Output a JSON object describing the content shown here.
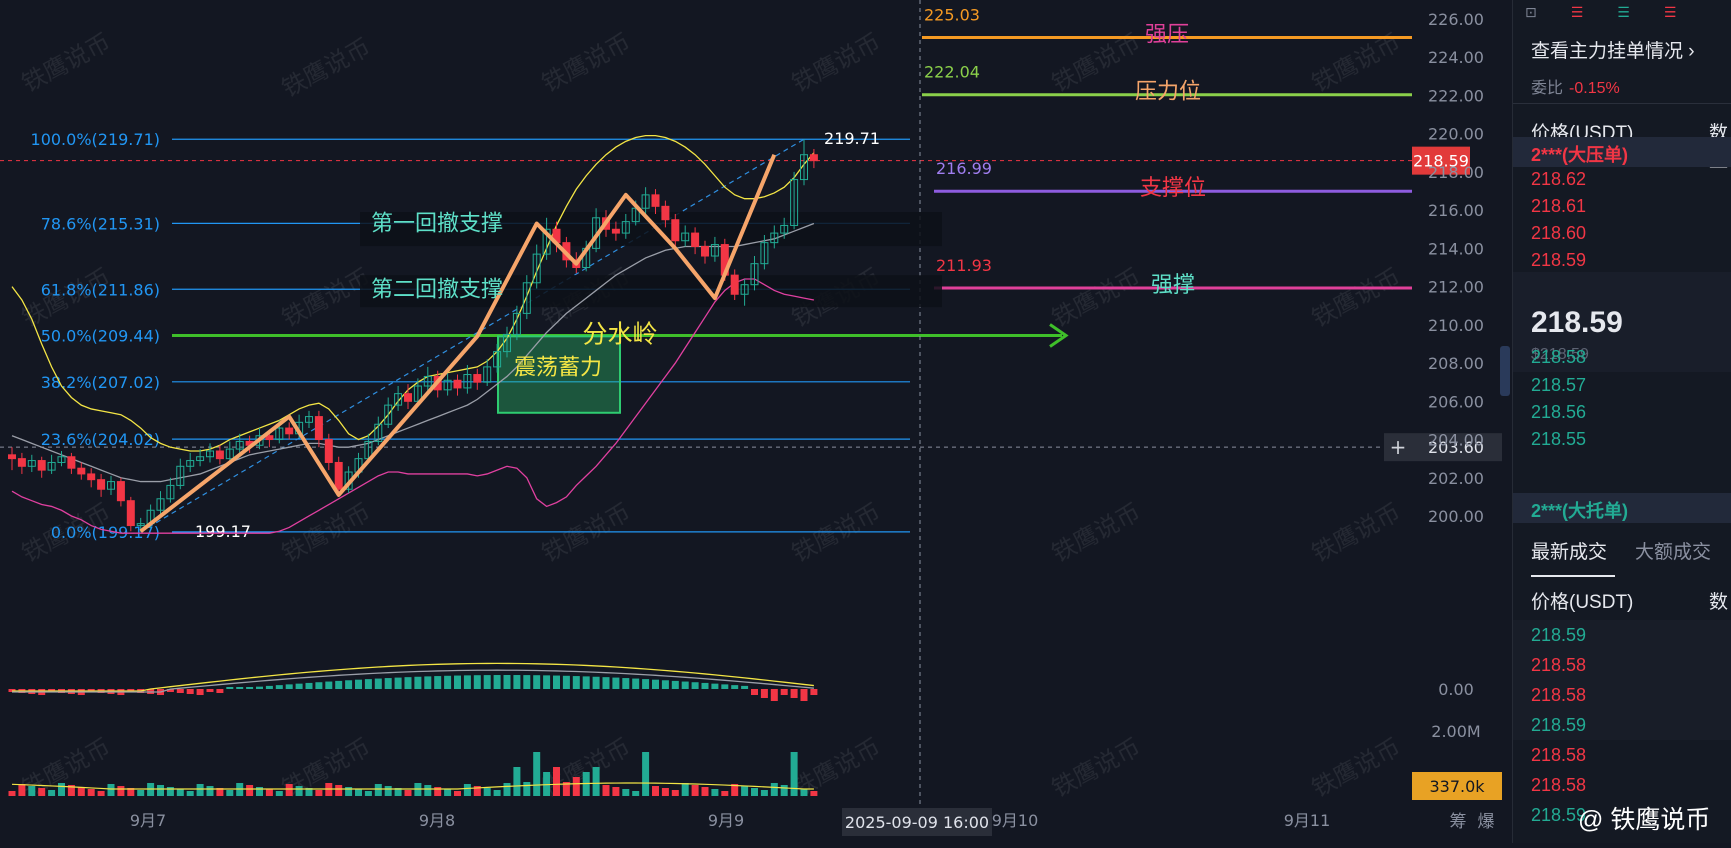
{
  "colors": {
    "bg": "#131722",
    "fib": "#2196f3",
    "up": "#22ab94",
    "down": "#f23645",
    "bb_upper": "#f3e545",
    "bb_mid": "#9a9ea8",
    "bb_lower": "#e040a0",
    "zigzag": "#f6a56a",
    "arrow": "#3fbf2a",
    "box": "#2ecc71"
  },
  "chart_data": {
    "type": "candlestick",
    "symbol_quote": "USDT",
    "y_ticks": [
      "226.00",
      "224.00",
      "222.00",
      "220.00",
      "218.00",
      "216.00",
      "214.00",
      "212.00",
      "210.00",
      "208.00",
      "206.00",
      "204.00",
      "202.00",
      "200.00"
    ],
    "x_ticks": [
      "9月7",
      "9月8",
      "9月9",
      "9月10",
      "9月11"
    ],
    "current_price": "218.59",
    "crosshair": {
      "price": "203.60",
      "time": "2025-09-09 16:00"
    },
    "fib_levels": [
      {
        "label": "100.0%(219.71)",
        "price": 219.71
      },
      {
        "label": "78.6%(215.31)",
        "price": 215.31
      },
      {
        "label": "61.8%(211.86)",
        "price": 211.86
      },
      {
        "label": "50.0%(209.44)",
        "price": 209.44
      },
      {
        "label": "38.2%(207.02)",
        "price": 207.02
      },
      {
        "label": "23.6%(204.02)",
        "price": 204.02
      },
      {
        "label": "0.0%(199.17)",
        "price": 199.17
      }
    ],
    "high_label": "219.71",
    "low_label": "199.17",
    "levels": [
      {
        "value": "225.03",
        "price": 225.03,
        "label": "强压",
        "color": "#f59a23",
        "label_color": "#e0409a",
        "value_color": "#f59a23"
      },
      {
        "value": "222.04",
        "price": 222.04,
        "label": "压力位",
        "color": "#8bd04a",
        "label_color": "#f6a56a",
        "value_color": "#8bd04a"
      },
      {
        "value": "216.99",
        "price": 216.99,
        "label": "支撑位",
        "color": "#8e5ce0",
        "label_color": "#f23645",
        "value_color": "#a07ef0"
      },
      {
        "value": "211.93",
        "price": 211.93,
        "label": "强撑",
        "color": "#e0409a",
        "label_color": "#5ee0c8",
        "value_color": "#f23645"
      }
    ],
    "annotations": [
      "第一回撤支撑",
      "第二回撤支撑",
      "分水岭",
      "震荡蓄力"
    ],
    "zigzag": [
      199.2,
      205.2,
      201.1,
      209.4,
      215.3,
      213.2,
      216.8,
      214.0,
      211.4,
      218.9
    ],
    "candles": [
      [
        203.2,
        203.0,
        203.6,
        202.4
      ],
      [
        203.0,
        202.6,
        203.3,
        202.2
      ],
      [
        202.6,
        202.9,
        203.2,
        202.3
      ],
      [
        202.9,
        202.4,
        203.1,
        202.0
      ],
      [
        202.4,
        202.8,
        203.2,
        202.2
      ],
      [
        202.8,
        203.1,
        203.4,
        202.6
      ],
      [
        203.1,
        202.5,
        203.3,
        202.2
      ],
      [
        202.5,
        202.2,
        202.8,
        201.9
      ],
      [
        202.2,
        201.9,
        202.5,
        201.5
      ],
      [
        201.9,
        201.4,
        202.2,
        201.0
      ],
      [
        201.4,
        201.8,
        202.1,
        201.1
      ],
      [
        201.8,
        200.8,
        202.0,
        200.5
      ],
      [
        200.8,
        199.5,
        201.0,
        199.2
      ],
      [
        199.5,
        199.6,
        199.9,
        199.17
      ],
      [
        199.6,
        200.3,
        200.6,
        199.4
      ],
      [
        200.3,
        200.9,
        201.3,
        200.1
      ],
      [
        200.9,
        201.6,
        202.0,
        200.7
      ],
      [
        201.6,
        202.6,
        203.0,
        201.4
      ],
      [
        202.6,
        202.9,
        203.3,
        202.3
      ],
      [
        202.9,
        203.1,
        203.5,
        202.6
      ],
      [
        203.1,
        203.4,
        203.8,
        202.8
      ],
      [
        203.4,
        203.0,
        203.7,
        202.7
      ],
      [
        203.0,
        203.5,
        203.9,
        202.8
      ],
      [
        203.5,
        203.9,
        204.3,
        203.2
      ],
      [
        203.9,
        203.7,
        204.2,
        203.3
      ],
      [
        203.7,
        204.2,
        204.6,
        203.5
      ],
      [
        204.2,
        204.0,
        204.5,
        203.6
      ],
      [
        204.0,
        204.6,
        205.0,
        203.8
      ],
      [
        204.6,
        204.3,
        204.9,
        204.0
      ],
      [
        204.3,
        204.9,
        205.3,
        204.1
      ],
      [
        204.9,
        205.2,
        205.5,
        204.6
      ],
      [
        205.2,
        204.0,
        205.5,
        203.6
      ],
      [
        204.0,
        202.8,
        204.3,
        202.4
      ],
      [
        202.8,
        201.4,
        203.1,
        201.1
      ],
      [
        201.4,
        202.3,
        202.6,
        201.2
      ],
      [
        202.3,
        203.0,
        203.3,
        202.0
      ],
      [
        203.0,
        203.9,
        204.3,
        202.8
      ],
      [
        203.9,
        204.8,
        205.2,
        203.7
      ],
      [
        204.8,
        205.8,
        206.2,
        204.6
      ],
      [
        205.8,
        206.4,
        206.8,
        205.5
      ],
      [
        206.4,
        206.0,
        206.9,
        205.6
      ],
      [
        206.0,
        206.8,
        207.2,
        205.8
      ],
      [
        206.8,
        207.3,
        207.8,
        206.5
      ],
      [
        207.3,
        206.6,
        207.6,
        206.2
      ],
      [
        206.6,
        207.1,
        207.5,
        206.3
      ],
      [
        207.1,
        206.7,
        207.4,
        206.3
      ],
      [
        206.7,
        207.4,
        207.9,
        206.4
      ],
      [
        207.4,
        207.0,
        207.7,
        206.6
      ],
      [
        207.0,
        207.8,
        208.2,
        206.8
      ],
      [
        207.8,
        208.6,
        209.0,
        207.5
      ],
      [
        208.6,
        209.5,
        209.9,
        208.3
      ],
      [
        209.5,
        210.6,
        211.0,
        209.2
      ],
      [
        210.6,
        212.2,
        212.6,
        210.3
      ],
      [
        212.2,
        213.7,
        214.2,
        211.9
      ],
      [
        213.7,
        215.0,
        215.6,
        213.4
      ],
      [
        215.0,
        214.3,
        215.4,
        213.8
      ],
      [
        214.3,
        213.4,
        214.6,
        213.0
      ],
      [
        213.4,
        213.0,
        213.8,
        212.7
      ],
      [
        213.0,
        214.0,
        214.4,
        212.8
      ],
      [
        214.0,
        215.6,
        216.1,
        213.8
      ],
      [
        215.6,
        215.0,
        216.0,
        214.6
      ],
      [
        215.0,
        214.8,
        215.4,
        214.4
      ],
      [
        214.8,
        215.4,
        215.8,
        214.5
      ],
      [
        215.4,
        216.1,
        216.5,
        215.2
      ],
      [
        216.1,
        216.8,
        217.2,
        215.8
      ],
      [
        216.8,
        216.2,
        217.1,
        215.8
      ],
      [
        216.2,
        215.5,
        216.5,
        215.1
      ],
      [
        215.5,
        214.4,
        215.8,
        214.0
      ],
      [
        214.4,
        214.8,
        215.2,
        214.1
      ],
      [
        214.8,
        214.1,
        215.1,
        213.7
      ],
      [
        214.1,
        213.6,
        214.4,
        213.2
      ],
      [
        213.6,
        214.2,
        214.6,
        213.3
      ],
      [
        214.2,
        212.6,
        214.5,
        212.3
      ],
      [
        212.6,
        211.6,
        212.9,
        211.3
      ],
      [
        211.6,
        212.1,
        212.4,
        211.0
      ],
      [
        212.1,
        213.2,
        213.6,
        211.8
      ],
      [
        213.2,
        214.3,
        214.7,
        212.9
      ],
      [
        214.3,
        214.8,
        215.2,
        214.0
      ],
      [
        214.8,
        215.2,
        215.6,
        214.5
      ],
      [
        215.2,
        217.6,
        218.0,
        215.0
      ],
      [
        217.6,
        218.9,
        219.71,
        217.3
      ],
      [
        218.9,
        218.59,
        219.2,
        218.2
      ]
    ],
    "bb_upper": [
      212.0,
      211.3,
      210.3,
      209.0,
      207.8,
      206.8,
      206.2,
      205.8,
      205.6,
      205.5,
      205.4,
      205.3,
      205.0,
      204.6,
      204.1,
      203.8,
      203.6,
      203.5,
      203.4,
      203.4,
      203.5,
      203.7,
      204.0,
      204.2,
      204.4,
      204.6,
      204.8,
      205.0,
      205.3,
      205.6,
      205.8,
      205.9,
      205.6,
      205.0,
      204.3,
      204.0,
      204.2,
      204.7,
      205.3,
      206.0,
      206.6,
      207.0,
      207.3,
      207.4,
      207.5,
      207.6,
      207.7,
      207.8,
      208.1,
      208.6,
      209.3,
      210.3,
      211.5,
      212.8,
      214.0,
      215.2,
      216.2,
      217.1,
      217.8,
      218.4,
      218.9,
      219.3,
      219.6,
      219.8,
      219.9,
      219.9,
      219.8,
      219.6,
      219.3,
      218.9,
      218.4,
      217.8,
      217.2,
      216.8,
      216.6,
      216.6,
      216.7,
      216.9,
      217.2,
      217.7,
      218.4,
      219.0
    ],
    "bb_mid": [
      204.2,
      204.0,
      203.8,
      203.6,
      203.4,
      203.2,
      203.0,
      202.8,
      202.6,
      202.4,
      202.2,
      202.0,
      201.9,
      201.8,
      201.8,
      201.8,
      201.9,
      202.0,
      202.1,
      202.2,
      202.4,
      202.6,
      202.8,
      203.0,
      203.2,
      203.3,
      203.4,
      203.5,
      203.6,
      203.7,
      203.8,
      203.8,
      203.7,
      203.6,
      203.6,
      203.7,
      203.8,
      204.0,
      204.2,
      204.4,
      204.6,
      204.8,
      205.0,
      205.2,
      205.4,
      205.6,
      205.8,
      206.1,
      206.5,
      206.9,
      207.3,
      207.8,
      208.4,
      209.0,
      209.6,
      210.1,
      210.6,
      211.0,
      211.4,
      211.8,
      212.2,
      212.6,
      212.9,
      213.2,
      213.5,
      213.7,
      213.9,
      214.0,
      214.1,
      214.1,
      214.1,
      214.1,
      214.1,
      214.1,
      214.2,
      214.3,
      214.4,
      214.5,
      214.7,
      214.9,
      215.1,
      215.3
    ],
    "bb_lower": [
      201.3,
      201.0,
      200.8,
      200.6,
      200.5,
      200.3,
      200.0,
      199.8,
      199.5,
      199.3,
      199.2,
      199.1,
      199.1,
      199.1,
      199.1,
      199.1,
      199.1,
      199.1,
      199.1,
      199.1,
      199.1,
      199.1,
      199.1,
      199.1,
      199.1,
      199.1,
      199.1,
      199.2,
      199.4,
      199.7,
      200.0,
      200.3,
      200.6,
      200.9,
      201.2,
      201.5,
      201.8,
      202.1,
      202.3,
      202.3,
      202.2,
      202.2,
      202.2,
      202.2,
      202.2,
      202.2,
      202.2,
      202.1,
      202.2,
      202.4,
      202.6,
      202.5,
      202.0,
      200.9,
      200.5,
      200.7,
      201.0,
      201.6,
      202.1,
      202.6,
      203.2,
      203.8,
      204.5,
      205.2,
      205.9,
      206.6,
      207.3,
      208.0,
      208.8,
      209.6,
      210.4,
      211.2,
      211.8,
      212.2,
      212.4,
      212.4,
      212.1,
      211.8,
      211.6,
      211.5,
      211.4,
      211.3
    ],
    "macd": {
      "zero_label": "0.00"
    },
    "volume": {
      "axis_label": "2.00M",
      "current": "337.0k"
    }
  },
  "orderbook": {
    "toolbar_icons": [
      "layout-icon",
      "book-both-icon",
      "book-bids-icon",
      "book-asks-icon"
    ],
    "link_text": "查看主力挂单情况",
    "ratio_label": "委比",
    "ratio_value": "-0.15%",
    "col_price": "价格(USDT)",
    "col_qty": "数量",
    "ask_big": "2***(大压单)",
    "asks": [
      "218.62",
      "218.61",
      "218.60",
      "218.59"
    ],
    "last": "218.59",
    "last_usd": "$218.59",
    "bids": [
      "218.58",
      "218.57",
      "218.56",
      "218.55"
    ],
    "bid_big": "2***(大托单)",
    "tab_latest": "最新成交",
    "tab_large": "大额成交",
    "trades_col_price": "价格(USDT)",
    "trades_col_qty": "数",
    "trades": [
      {
        "p": "218.59",
        "side": "buy"
      },
      {
        "p": "218.58",
        "side": "sell"
      },
      {
        "p": "218.58",
        "side": "sell"
      },
      {
        "p": "218.59",
        "side": "buy"
      },
      {
        "p": "218.58",
        "side": "sell"
      },
      {
        "p": "218.58",
        "side": "sell"
      },
      {
        "p": "218.59",
        "side": "buy"
      }
    ]
  },
  "bottom_labels": [
    "筹",
    "爆"
  ],
  "watermark": "铁鹰说币",
  "brand": "@ 铁鹰说币"
}
